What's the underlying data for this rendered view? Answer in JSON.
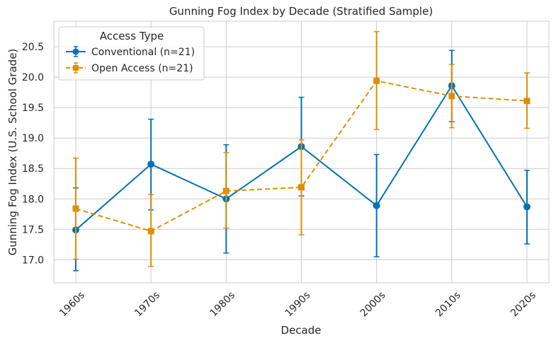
{
  "chart_data": {
    "type": "line",
    "title": "Gunning Fog Index by Decade (Stratified Sample)",
    "xlabel": "Decade",
    "ylabel": "Gunning Fog Index (U.S. School Grade)",
    "categories": [
      "1960s",
      "1970s",
      "1980s",
      "1990s",
      "2000s",
      "2010s",
      "2020s"
    ],
    "ylim": [
      16.62,
      20.92
    ],
    "yticks": [
      17.0,
      17.5,
      18.0,
      18.5,
      19.0,
      19.5,
      20.0,
      20.5
    ],
    "ytick_labels": [
      "17.0",
      "17.5",
      "18.0",
      "18.5",
      "19.0",
      "19.5",
      "20.0",
      "20.5"
    ],
    "grid": true,
    "legend": {
      "title": "Access Type",
      "placement": "upper-left"
    },
    "series": [
      {
        "name": "Conventional (n=21)",
        "color": "#0173b2",
        "marker": "circle",
        "linestyle": "solid",
        "values": [
          17.49,
          18.57,
          18.0,
          18.86,
          17.89,
          19.86,
          17.87
        ],
        "err_low": [
          16.82,
          17.82,
          17.11,
          18.05,
          17.05,
          19.27,
          17.26
        ],
        "err_high": [
          18.18,
          19.31,
          18.89,
          19.67,
          18.73,
          20.44,
          18.47
        ]
      },
      {
        "name": "Open Access (n=21)",
        "color": "#de8f05",
        "marker": "square",
        "linestyle": "dashed",
        "values": [
          17.84,
          17.47,
          18.13,
          18.19,
          19.94,
          19.69,
          19.61
        ],
        "err_low": [
          17.01,
          16.89,
          17.52,
          17.41,
          19.14,
          19.17,
          19.16
        ],
        "err_high": [
          18.67,
          18.07,
          18.76,
          18.97,
          20.75,
          20.21,
          20.07
        ]
      }
    ]
  }
}
